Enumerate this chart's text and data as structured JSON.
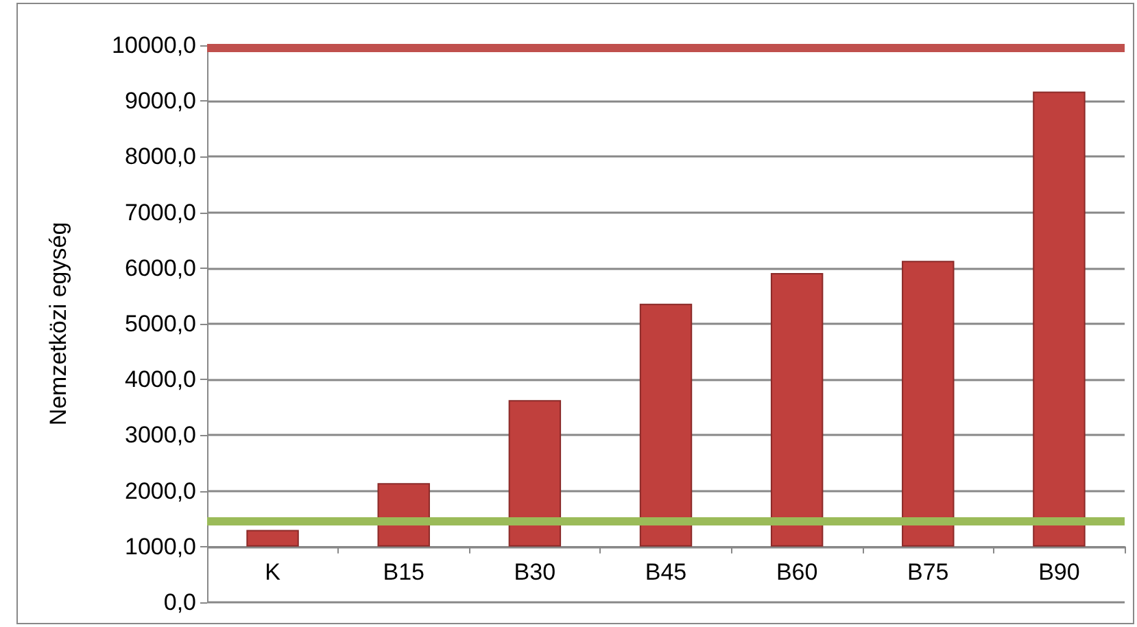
{
  "chart_data": {
    "type": "bar",
    "ylabel": "Nemzetközi egység",
    "categories": [
      "K",
      "B15",
      "B30",
      "B45",
      "B60",
      "B75",
      "B90"
    ],
    "base": [
      1000,
      1000,
      1000,
      1000,
      1000,
      1000,
      1000
    ],
    "values": [
      300,
      1140,
      2630,
      4360,
      4910,
      5130,
      8170
    ],
    "color": "#c0403d",
    "ylim": [
      0,
      10000
    ],
    "yticks": [
      {
        "value": 0,
        "label": "0,0"
      },
      {
        "value": 1000,
        "label": "1000,0"
      },
      {
        "value": 2000,
        "label": "2000,0"
      },
      {
        "value": 3000,
        "label": "3000,0"
      },
      {
        "value": 4000,
        "label": "4000,0"
      },
      {
        "value": 5000,
        "label": "5000,0"
      },
      {
        "value": 6000,
        "label": "6000,0"
      },
      {
        "value": 7000,
        "label": "7000,0"
      },
      {
        "value": 8000,
        "label": "8000,0"
      },
      {
        "value": 9000,
        "label": "9000,0"
      },
      {
        "value": 10000,
        "label": "10000,0"
      }
    ],
    "ref_lines": [
      {
        "axis": "y",
        "value": 1450,
        "color": "#9bbb59"
      },
      {
        "axis": "y",
        "value": 9950,
        "color": "#c0504d"
      }
    ],
    "grid": "y"
  }
}
